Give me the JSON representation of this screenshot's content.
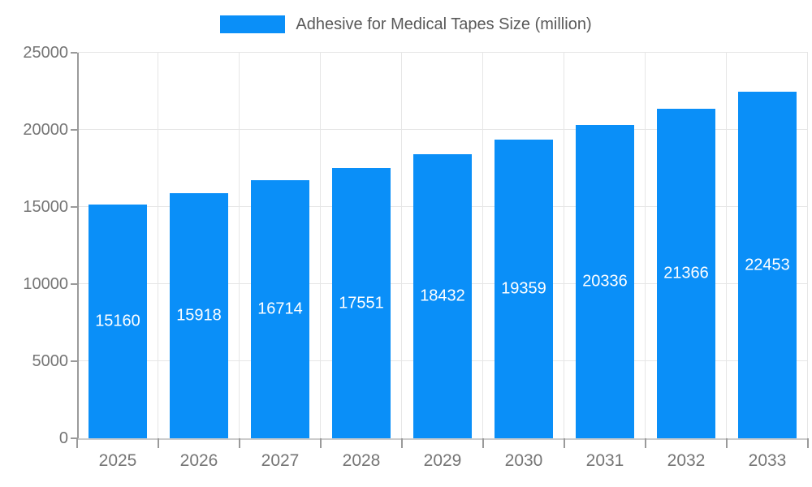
{
  "legend": {
    "label": "Adhesive for Medical Tapes Size (million)",
    "swatch_color": "#0a8ff8"
  },
  "chart_data": {
    "type": "bar",
    "title": "Adhesive for Medical Tapes Size (million)",
    "categories": [
      "2025",
      "2026",
      "2027",
      "2028",
      "2029",
      "2030",
      "2031",
      "2032",
      "2033"
    ],
    "values": [
      15160,
      15918,
      16714,
      17551,
      18432,
      19359,
      20336,
      21366,
      22453
    ],
    "series_name": "Adhesive for Medical Tapes Size (million)",
    "xlabel": "",
    "ylabel": "",
    "ylim": [
      0,
      25000
    ],
    "yticks": [
      0,
      5000,
      10000,
      15000,
      20000,
      25000
    ],
    "grid": true,
    "legend_position": "top-center",
    "bar_labels_visible": true,
    "bar_label_position": "center-inside"
  },
  "colors": {
    "bar": "#0a8ff8",
    "bar_label": "#ffffff",
    "gridline": "#e6e6e6",
    "axis_line": "#9a9a9a",
    "x_axis_line": "#cccccc",
    "axis_text": "#757575",
    "legend_text": "#595959",
    "background": "#ffffff"
  }
}
